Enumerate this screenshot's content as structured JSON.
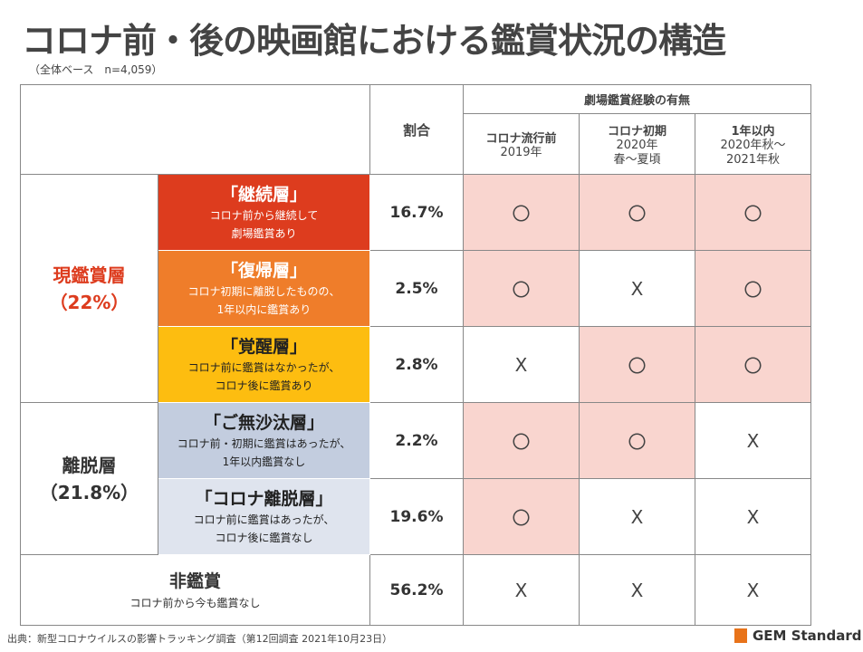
{
  "title": "コロナ前・後の映画館における鑑賞状況の構造",
  "base": "（全体ベース　n=4,059）",
  "header": {
    "ratio": "割合",
    "experience": "劇場鑑賞経験の有無",
    "periods": [
      {
        "name": "コロナ流行前",
        "sub1": "2019年",
        "sub2": ""
      },
      {
        "name": "コロナ初期",
        "sub1": "2020年",
        "sub2": "春～夏頃"
      },
      {
        "name": "1年以内",
        "sub1": "2020年秋～",
        "sub2": "2021年秋"
      }
    ]
  },
  "groups": [
    {
      "name": "現鑑賞層",
      "pct": "（22%）"
    },
    {
      "name": "離脱層",
      "pct": "（21.8%）"
    }
  ],
  "rows": [
    {
      "name": "「継続層」",
      "desc1": "コロナ前から継続して",
      "desc2": "劇場鑑賞あり",
      "ratio": "16.7%",
      "marks": [
        "〇",
        "〇",
        "〇"
      ],
      "bg": "#dd3c1e",
      "fg": "#ffffff"
    },
    {
      "name": "「復帰層」",
      "desc1": "コロナ初期に離脱したものの、",
      "desc2": "1年以内に鑑賞あり",
      "ratio": "2.5%",
      "marks": [
        "〇",
        "X",
        "〇"
      ],
      "bg": "#ef7d2a",
      "fg": "#ffffff"
    },
    {
      "name": "「覚醒層」",
      "desc1": "コロナ前に鑑賞はなかったが、",
      "desc2": "コロナ後に鑑賞あり",
      "ratio": "2.8%",
      "marks": [
        "X",
        "〇",
        "〇"
      ],
      "bg": "#fdbd10",
      "fg": "#222222"
    },
    {
      "name": "「ご無沙汰層」",
      "desc1": "コロナ前・初期に鑑賞はあったが、",
      "desc2": "1年以内鑑賞なし",
      "ratio": "2.2%",
      "marks": [
        "〇",
        "〇",
        "X"
      ],
      "bg": "#c3cddf",
      "fg": "#222222"
    },
    {
      "name": "「コロナ離脱層」",
      "desc1": "コロナ前に鑑賞はあったが、",
      "desc2": "コロナ後に鑑賞なし",
      "ratio": "19.6%",
      "marks": [
        "〇",
        "X",
        "X"
      ],
      "bg": "#dfe4ee",
      "fg": "#222222"
    },
    {
      "name": "非鑑賞",
      "desc1": "コロナ前から今も鑑賞なし",
      "ratio": "56.2%",
      "marks": [
        "X",
        "X",
        "X"
      ]
    }
  ],
  "colors": {
    "current": "#dd3c1e",
    "pink": "#f9d5cf"
  },
  "footer": "出典：新型コロナウイルスの影響トラッキング調査（第12回調査 2021年10月23日）",
  "logo": "GEM Standard"
}
